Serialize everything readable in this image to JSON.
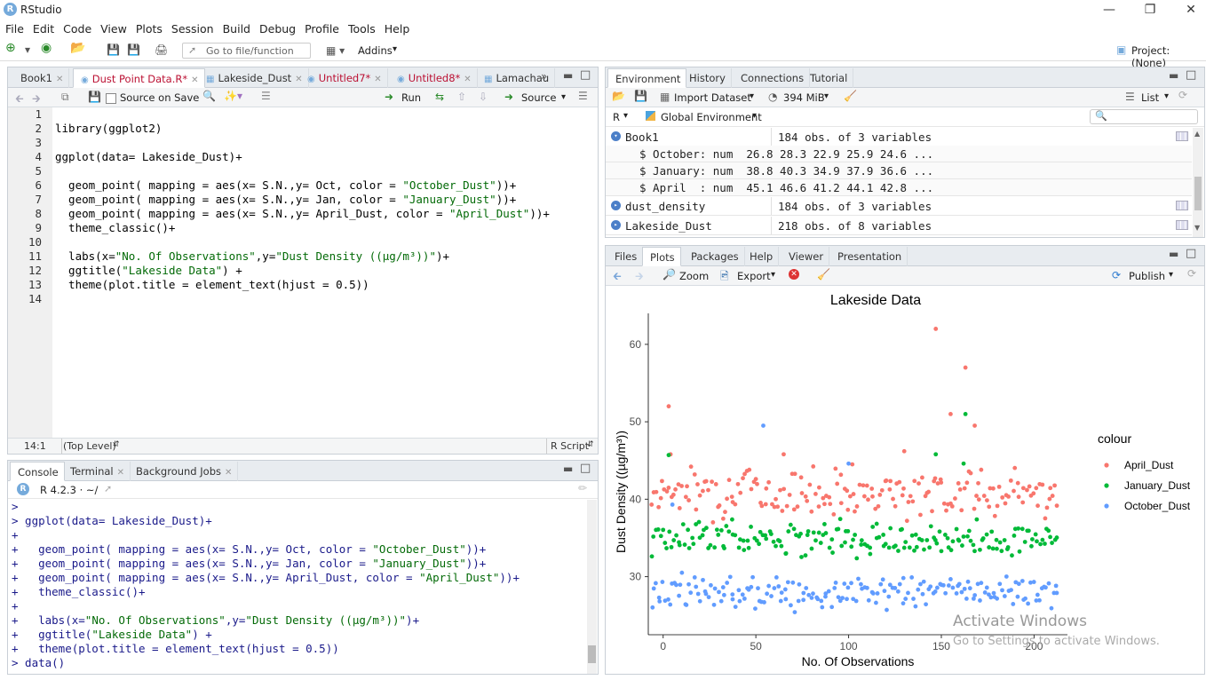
{
  "window": {
    "title": "RStudio",
    "logo_letter": "R"
  },
  "menu": [
    "File",
    "Edit",
    "Code",
    "View",
    "Plots",
    "Session",
    "Build",
    "Debug",
    "Profile",
    "Tools",
    "Help"
  ],
  "toolbar": {
    "goto_placeholder": "Go to file/function",
    "addins": "Addins",
    "project": "Project: (None)"
  },
  "editor": {
    "tabs": [
      {
        "label": "Book1",
        "active": false,
        "dirty": false
      },
      {
        "label": "Dust Point Data.R*",
        "active": true,
        "dirty": true
      },
      {
        "label": "Lakeside_Dust",
        "active": false,
        "dirty": false
      },
      {
        "label": "Untitled7*",
        "active": false,
        "dirty": true
      },
      {
        "label": "Untitled8*",
        "active": false,
        "dirty": true
      },
      {
        "label": "Lamachau",
        "active": false,
        "dirty": false
      }
    ],
    "source_on_save": "Source on Save",
    "run": "Run",
    "source": "Source",
    "lines": [
      "",
      "library(ggplot2)",
      "",
      "ggplot(data= Lakeside_Dust)+",
      "",
      "  geom_point( mapping = aes(x= S.N.,y= Oct, color = \"October_Dust\"))+",
      "  geom_point( mapping = aes(x= S.N.,y= Jan, color = \"January_Dust\"))+",
      "  geom_point( mapping = aes(x= S.N.,y= April_Dust, color = \"April_Dust\"))+",
      "  theme_classic()+",
      "",
      "  labs(x=\"No. Of Observations\",y=\"Dust Density ((µg/m³))\")+",
      "  ggtitle(\"Lakeside Data\") +",
      "  theme(plot.title = element_text(hjust = 0.5))",
      ""
    ],
    "status_pos": "14:1",
    "status_scope": "(Top Level)",
    "status_type": "R Script"
  },
  "console": {
    "tabs": [
      "Console",
      "Terminal",
      "Background Jobs"
    ],
    "version": "R 4.2.3 · ~/",
    "lines": [
      ">",
      "> ggplot(data= Lakeside_Dust)+",
      "+",
      "+   geom_point( mapping = aes(x= S.N.,y= Oct, color = \"October_Dust\"))+",
      "+   geom_point( mapping = aes(x= S.N.,y= Jan, color = \"January_Dust\"))+",
      "+   geom_point( mapping = aes(x= S.N.,y= April_Dust, color = \"April_Dust\"))+",
      "+   theme_classic()+",
      "+",
      "+   labs(x=\"No. Of Observations\",y=\"Dust Density ((µg/m³))\")+",
      "+   ggtitle(\"Lakeside Data\") +",
      "+   theme(plot.title = element_text(hjust = 0.5))",
      "> data()"
    ]
  },
  "env": {
    "tabs": [
      "Environment",
      "History",
      "Connections",
      "Tutorial"
    ],
    "import": "Import Dataset",
    "memory": "394 MiB",
    "list": "List",
    "lang": "R",
    "scope": "Global Environment",
    "rows": [
      {
        "name": "Book1",
        "desc": "184 obs. of 3 variables",
        "expanded": true
      },
      {
        "sub": "$ October: num  26.8 28.3 22.9 25.9 24.6 ..."
      },
      {
        "sub": "$ January: num  38.8 40.3 34.9 37.9 36.6 ..."
      },
      {
        "sub": "$ April  : num  45.1 46.6 41.2 44.1 42.8 ..."
      },
      {
        "name": "dust_density",
        "desc": "184 obs. of 3 variables",
        "expanded": false
      },
      {
        "name": "Lakeside_Dust",
        "desc": "218 obs. of 8 variables",
        "expanded": false
      }
    ]
  },
  "files": {
    "tabs": [
      "Files",
      "Plots",
      "Packages",
      "Help",
      "Viewer",
      "Presentation"
    ],
    "zoom": "Zoom",
    "export": "Export",
    "publish": "Publish"
  },
  "chart_data": {
    "type": "scatter",
    "title": "Lakeside Data",
    "xlabel": "No. Of Observations",
    "ylabel": "Dust Density ((µg/m³))",
    "xlim": [
      -8,
      218
    ],
    "ylim": [
      22.5,
      64
    ],
    "xticks": [
      0,
      50,
      100,
      150,
      200
    ],
    "yticks": [
      30,
      40,
      50,
      60
    ],
    "legend_title": "colour",
    "legend_position": "right",
    "series": [
      {
        "name": "April_Dust",
        "color": "#F8766D",
        "center": 41,
        "spread": 2.2,
        "outliers": [
          [
            3,
            52
          ],
          [
            4,
            45.8
          ],
          [
            65,
            45.8
          ],
          [
            102,
            44.5
          ],
          [
            130,
            46.2
          ],
          [
            147,
            62
          ],
          [
            155,
            51
          ],
          [
            163,
            57
          ],
          [
            168,
            49.5
          ]
        ]
      },
      {
        "name": "January_Dust",
        "color": "#00BA38",
        "center": 35,
        "spread": 1.6,
        "outliers": [
          [
            3,
            45.7
          ],
          [
            147,
            45.8
          ],
          [
            163,
            51
          ],
          [
            162,
            44.6
          ]
        ]
      },
      {
        "name": "October_Dust",
        "color": "#619CFF",
        "center": 28,
        "spread": 1.6,
        "outliers": [
          [
            54,
            49.5
          ],
          [
            100,
            44.6
          ],
          [
            5,
            39.3
          ]
        ]
      }
    ],
    "n_points": 184
  },
  "watermark": {
    "line1": "Activate Windows",
    "line2": "Go to Settings to activate Windows."
  }
}
